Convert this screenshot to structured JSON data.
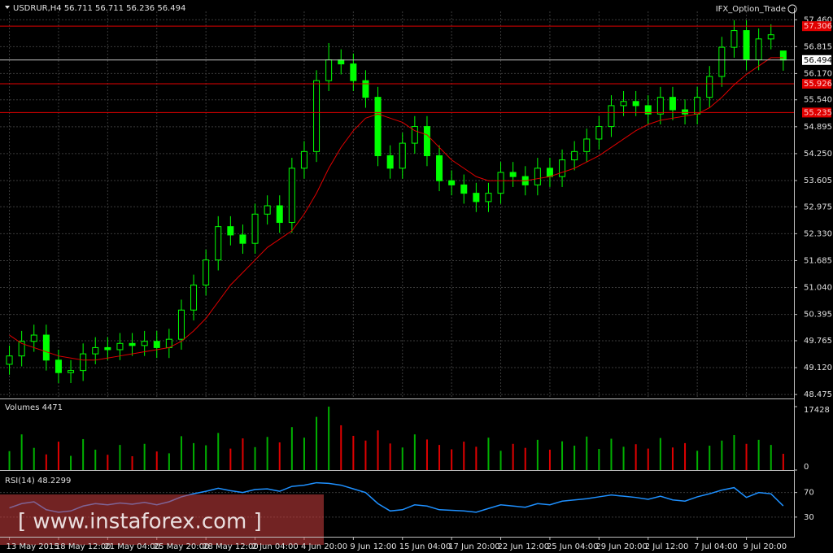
{
  "chart_data": [
    {
      "type": "candlestick",
      "title": "USDRUR,H4  56.711 56.711 56.236 56.494",
      "indicator_label": "IFX_Option_Trade",
      "watermark": "[ www.instaforex.com ]",
      "categories": [
        "13 May 2015",
        null,
        null,
        null,
        "18 May 12:00",
        null,
        null,
        null,
        "21 May 04:00",
        null,
        null,
        null,
        "25 May 20:00",
        null,
        null,
        null,
        "28 May 12:00",
        null,
        null,
        null,
        "2 Jun 04:00",
        null,
        null,
        null,
        "4 Jun 20:00",
        null,
        null,
        null,
        "9 Jun 12:00",
        null,
        null,
        null,
        "15 Jun 04:00",
        null,
        null,
        null,
        "17 Jun 20:00",
        null,
        null,
        null,
        "22 Jun 12:00",
        null,
        null,
        null,
        "25 Jun 04:00",
        null,
        null,
        null,
        "29 Jun 20:00",
        null,
        null,
        null,
        "2 Jul 12:00",
        null,
        null,
        null,
        "7 Jul 04:00",
        null,
        null,
        null,
        "9 Jul 20:00",
        null,
        null,
        null
      ],
      "open": [
        49.2,
        49.4,
        49.75,
        49.9,
        49.3,
        49.0,
        49.05,
        49.45,
        49.6,
        49.55,
        49.7,
        49.65,
        49.75,
        49.6,
        49.8,
        50.5,
        51.1,
        51.7,
        52.5,
        52.3,
        52.1,
        52.8,
        53.0,
        52.6,
        53.9,
        54.3,
        56.0,
        56.5,
        56.4,
        56.0,
        55.6,
        54.2,
        53.9,
        54.5,
        54.9,
        54.2,
        53.6,
        53.5,
        53.3,
        53.1,
        53.3,
        53.8,
        53.7,
        53.5,
        53.9,
        53.7,
        54.1,
        54.3,
        54.6,
        54.9,
        55.4,
        55.5,
        55.4,
        55.2,
        55.6,
        55.3,
        55.2,
        55.6,
        56.1,
        56.8,
        57.2,
        56.5,
        57.0,
        56.711
      ],
      "high": [
        49.65,
        50.0,
        50.15,
        50.15,
        49.55,
        49.3,
        49.7,
        49.85,
        49.85,
        49.95,
        49.95,
        50.0,
        50.0,
        50.05,
        50.75,
        51.35,
        51.95,
        52.75,
        52.75,
        52.55,
        53.05,
        53.25,
        53.25,
        54.15,
        54.55,
        56.25,
        56.9,
        56.75,
        56.65,
        56.25,
        55.85,
        54.45,
        54.75,
        55.15,
        55.15,
        54.45,
        53.85,
        53.75,
        53.55,
        53.55,
        54.05,
        54.05,
        53.95,
        54.15,
        54.15,
        54.35,
        54.55,
        54.85,
        55.15,
        55.65,
        55.75,
        55.75,
        55.65,
        55.85,
        55.85,
        55.55,
        55.85,
        56.35,
        57.05,
        57.45,
        57.45,
        57.25,
        57.35,
        56.711
      ],
      "low": [
        48.95,
        49.15,
        49.5,
        49.05,
        48.75,
        48.75,
        48.8,
        49.2,
        49.3,
        49.3,
        49.4,
        49.4,
        49.35,
        49.35,
        49.55,
        50.25,
        50.85,
        51.45,
        52.05,
        51.85,
        51.85,
        52.55,
        52.35,
        52.35,
        53.65,
        54.05,
        55.75,
        56.15,
        55.75,
        55.35,
        53.95,
        53.65,
        53.65,
        54.25,
        53.95,
        53.35,
        53.25,
        53.05,
        52.85,
        52.85,
        53.05,
        53.45,
        53.25,
        53.25,
        53.45,
        53.45,
        53.85,
        54.05,
        54.35,
        54.65,
        55.15,
        55.15,
        54.95,
        54.95,
        55.05,
        54.95,
        54.95,
        55.35,
        55.85,
        56.55,
        56.25,
        56.25,
        56.75,
        56.236
      ],
      "close": [
        49.4,
        49.75,
        49.9,
        49.3,
        49.0,
        49.05,
        49.45,
        49.6,
        49.55,
        49.7,
        49.65,
        49.75,
        49.6,
        49.8,
        50.5,
        51.1,
        51.7,
        52.5,
        52.3,
        52.1,
        52.8,
        53.0,
        52.6,
        53.9,
        54.3,
        56.0,
        56.5,
        56.4,
        56.0,
        55.6,
        54.2,
        53.9,
        54.5,
        54.9,
        54.2,
        53.6,
        53.5,
        53.3,
        53.1,
        53.3,
        53.8,
        53.7,
        53.5,
        53.9,
        53.7,
        54.1,
        54.3,
        54.6,
        54.9,
        55.4,
        55.5,
        55.4,
        55.2,
        55.6,
        55.3,
        55.2,
        55.6,
        56.1,
        56.8,
        57.2,
        56.5,
        57.0,
        57.1,
        56.494
      ],
      "color": "#00ff00",
      "ma": {
        "color": "#e00000",
        "values": [
          49.9,
          49.7,
          49.6,
          49.5,
          49.4,
          49.35,
          49.3,
          49.3,
          49.35,
          49.4,
          49.45,
          49.5,
          49.55,
          49.6,
          49.75,
          50.0,
          50.3,
          50.7,
          51.1,
          51.4,
          51.7,
          52.0,
          52.2,
          52.4,
          52.8,
          53.3,
          53.9,
          54.4,
          54.8,
          55.1,
          55.2,
          55.1,
          55.0,
          54.8,
          54.7,
          54.4,
          54.1,
          53.9,
          53.7,
          53.6,
          53.6,
          53.6,
          53.6,
          53.65,
          53.7,
          53.8,
          53.9,
          54.05,
          54.2,
          54.4,
          54.6,
          54.8,
          54.95,
          55.05,
          55.1,
          55.15,
          55.2,
          55.35,
          55.6,
          55.9,
          56.15,
          56.35,
          56.55,
          56.55
        ]
      },
      "hlines": [
        {
          "value": 57.306,
          "color": "#e00000"
        },
        {
          "value": 56.494,
          "color": "#c0c0c0"
        },
        {
          "value": 55.926,
          "color": "#e00000"
        },
        {
          "value": 55.235,
          "color": "#e00000"
        }
      ],
      "ylim": [
        48.38,
        57.66
      ],
      "yticks": [
        48.475,
        {
          "value": 49.12,
          "label": "49.120"
        },
        49.765,
        50.395,
        {
          "value": 51.04,
          "label": "51.040"
        },
        51.685,
        {
          "value": 52.33,
          "label": "52.330"
        },
        52.975,
        53.605,
        {
          "value": 54.25,
          "label": "54.250"
        },
        54.895,
        {
          "value": 55.54,
          "label": "55.540"
        },
        {
          "value": 56.17,
          "label": "56.170"
        },
        56.815,
        {
          "value": 57.46,
          "label": "57.460"
        }
      ],
      "grid": true
    },
    {
      "type": "bar",
      "title": "Volumes 4471",
      "color_up": "#00b000",
      "color_down": "#e00000",
      "values": [
        5200,
        9800,
        6100,
        4300,
        7800,
        3900,
        8500,
        5600,
        4200,
        6900,
        3800,
        7200,
        5100,
        4600,
        9300,
        7400,
        6800,
        10200,
        5900,
        8700,
        6300,
        9100,
        7600,
        11800,
        8900,
        14600,
        17428,
        12300,
        9400,
        8100,
        10900,
        7300,
        6200,
        9800,
        8400,
        6900,
        5700,
        7800,
        6400,
        8900,
        5300,
        7200,
        6100,
        8300,
        5600,
        7900,
        6700,
        9200,
        5800,
        8600,
        6400,
        7100,
        5900,
        8800,
        6200,
        7400,
        5300,
        6700,
        8100,
        9600,
        7200,
        8300,
        6900,
        4471
      ],
      "ylim": [
        0,
        17428
      ],
      "yticks": [
        0,
        17428
      ]
    },
    {
      "type": "line",
      "title": "RSI(14) 48.2299",
      "color": "#1e90ff",
      "values": [
        45,
        52,
        55,
        42,
        38,
        40,
        48,
        52,
        50,
        53,
        51,
        54,
        50,
        55,
        63,
        68,
        72,
        77,
        73,
        70,
        75,
        76,
        72,
        80,
        82,
        86,
        85,
        82,
        76,
        70,
        52,
        40,
        42,
        50,
        48,
        42,
        41,
        40,
        38,
        44,
        50,
        48,
        46,
        52,
        50,
        56,
        58,
        60,
        63,
        66,
        64,
        62,
        59,
        64,
        58,
        56,
        63,
        68,
        74,
        78,
        62,
        70,
        68,
        48.2299
      ],
      "ylim": [
        0,
        100
      ],
      "yticks": [
        30,
        70
      ]
    }
  ]
}
